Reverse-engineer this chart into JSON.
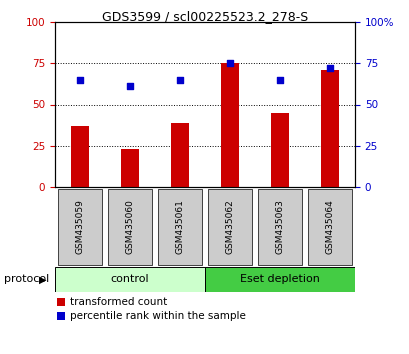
{
  "title": "GDS3599 / scl00225523.2_278-S",
  "categories": [
    "GSM435059",
    "GSM435060",
    "GSM435061",
    "GSM435062",
    "GSM435063",
    "GSM435064"
  ],
  "bar_values": [
    37,
    23,
    39,
    75,
    45,
    71
  ],
  "dot_values": [
    65,
    61,
    65,
    75,
    65,
    72
  ],
  "bar_color": "#cc0000",
  "dot_color": "#0000cc",
  "ylim": [
    0,
    100
  ],
  "yticks": [
    0,
    25,
    50,
    75,
    100
  ],
  "ytick_labels_left": [
    "0",
    "25",
    "50",
    "75",
    "100"
  ],
  "ytick_labels_right": [
    "0",
    "25",
    "50",
    "75",
    "100%"
  ],
  "grid_lines": [
    25,
    50,
    75
  ],
  "protocol_groups": [
    {
      "label": "control",
      "indices": [
        0,
        1,
        2
      ],
      "color": "#ccffcc"
    },
    {
      "label": "Eset depletion",
      "indices": [
        3,
        4,
        5
      ],
      "color": "#44cc44"
    }
  ],
  "protocol_label": "protocol",
  "legend_bar_label": "transformed count",
  "legend_dot_label": "percentile rank within the sample",
  "tick_label_area_color": "#cccccc",
  "bg_color": "#ffffff",
  "bar_width": 0.35
}
